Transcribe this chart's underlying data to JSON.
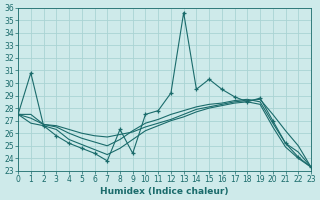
{
  "title": "",
  "xlabel": "Humidex (Indice chaleur)",
  "ylim": [
    23,
    36
  ],
  "xlim": [
    0,
    23
  ],
  "yticks": [
    23,
    24,
    25,
    26,
    27,
    28,
    29,
    30,
    31,
    32,
    33,
    34,
    35,
    36
  ],
  "xticks": [
    0,
    1,
    2,
    3,
    4,
    5,
    6,
    7,
    8,
    9,
    10,
    11,
    12,
    13,
    14,
    15,
    16,
    17,
    18,
    19,
    20,
    21,
    22,
    23
  ],
  "bg_color": "#ceeaea",
  "line_color": "#1a6b6b",
  "grid_color": "#aad4d4",
  "lines": [
    {
      "x": [
        0,
        1,
        2,
        3,
        4,
        5,
        6,
        7,
        8,
        9,
        10,
        11,
        12,
        13,
        14,
        15,
        16,
        17,
        18,
        19,
        20,
        21,
        22,
        23
      ],
      "y": [
        27.5,
        30.8,
        26.6,
        25.8,
        25.2,
        24.8,
        24.4,
        23.8,
        26.3,
        24.4,
        27.5,
        27.8,
        29.2,
        35.6,
        29.5,
        30.3,
        29.5,
        28.9,
        28.5,
        28.8,
        27.0,
        25.2,
        24.1,
        23.3
      ],
      "marker": true
    },
    {
      "x": [
        0,
        1,
        2,
        3,
        4,
        5,
        6,
        7,
        8,
        9,
        10,
        11,
        12,
        13,
        14,
        15,
        16,
        17,
        18,
        19,
        20,
        21,
        22,
        23
      ],
      "y": [
        27.5,
        27.5,
        26.7,
        26.6,
        26.3,
        26.0,
        25.8,
        25.7,
        25.9,
        26.1,
        26.5,
        26.8,
        27.1,
        27.5,
        27.9,
        28.1,
        28.3,
        28.5,
        28.6,
        28.7,
        27.5,
        26.2,
        25.0,
        23.3
      ],
      "marker": false
    },
    {
      "x": [
        0,
        1,
        2,
        3,
        4,
        5,
        6,
        7,
        8,
        9,
        10,
        11,
        12,
        13,
        14,
        15,
        16,
        17,
        18,
        19,
        20,
        21,
        22,
        23
      ],
      "y": [
        27.5,
        27.2,
        26.7,
        26.5,
        26.0,
        25.6,
        25.3,
        25.0,
        25.5,
        26.2,
        26.8,
        27.1,
        27.5,
        27.8,
        28.1,
        28.3,
        28.4,
        28.6,
        28.7,
        28.5,
        26.8,
        25.2,
        24.5,
        23.3
      ],
      "marker": false
    },
    {
      "x": [
        0,
        1,
        2,
        3,
        4,
        5,
        6,
        7,
        8,
        9,
        10,
        11,
        12,
        13,
        14,
        15,
        16,
        17,
        18,
        19,
        20,
        21,
        22,
        23
      ],
      "y": [
        27.5,
        26.8,
        26.6,
        26.3,
        25.5,
        25.1,
        24.7,
        24.3,
        24.8,
        25.5,
        26.2,
        26.6,
        27.0,
        27.3,
        27.7,
        28.0,
        28.2,
        28.4,
        28.5,
        28.3,
        26.5,
        24.9,
        24.0,
        23.3
      ],
      "marker": false
    }
  ]
}
